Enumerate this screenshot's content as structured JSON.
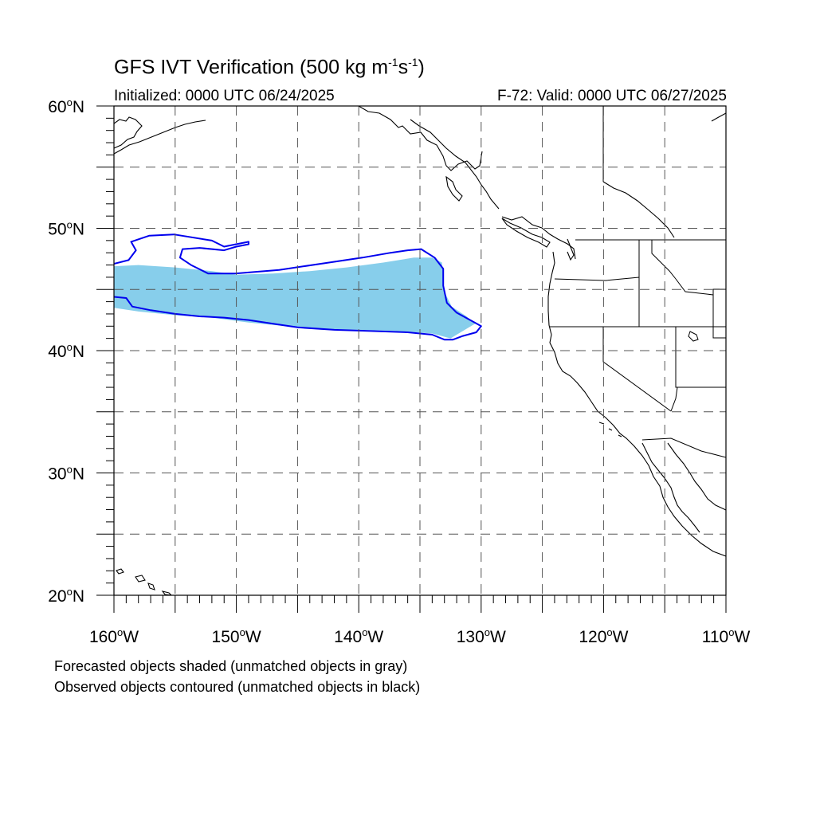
{
  "title": {
    "main": "GFS IVT Verification (500 kg m",
    "exp1": "-1",
    "mid": "s",
    "exp2": "-1",
    "end": ")"
  },
  "initialized": "Initialized: 0000 UTC 06/24/2025",
  "valid": "F-72: Valid: 0000 UTC 06/27/2025",
  "footnotes": [
    "Forecasted objects shaded (unmatched objects in gray)",
    "Observed objects contoured (unmatched objects in black)"
  ],
  "map": {
    "lat_range": [
      20,
      60
    ],
    "lon_range": [
      -160,
      -110
    ],
    "grid": "dashed every 5 degrees",
    "lat_labels": [
      {
        "lat": 60,
        "deg": "60",
        "hem": "N"
      },
      {
        "lat": 50,
        "deg": "50",
        "hem": "N"
      },
      {
        "lat": 40,
        "deg": "40",
        "hem": "N"
      },
      {
        "lat": 30,
        "deg": "30",
        "hem": "N"
      },
      {
        "lat": 20,
        "deg": "20",
        "hem": "N"
      }
    ],
    "lon_labels": [
      {
        "lon": -160,
        "deg": "160",
        "hem": "W"
      },
      {
        "lon": -150,
        "deg": "150",
        "hem": "W"
      },
      {
        "lon": -140,
        "deg": "140",
        "hem": "W"
      },
      {
        "lon": -130,
        "deg": "130",
        "hem": "W"
      },
      {
        "lon": -120,
        "deg": "120",
        "hem": "W"
      },
      {
        "lon": -110,
        "deg": "110",
        "hem": "W"
      }
    ],
    "colors": {
      "forecast_fill": "#87ceeb",
      "observed_contour": "#0000ee",
      "coastline": "#000000",
      "grid": "#555555"
    },
    "forecast_object": {
      "upper_edge": [
        [
          -160,
          46.9
        ],
        [
          -158,
          47.0
        ],
        [
          -155,
          46.8
        ],
        [
          -152,
          46.5
        ],
        [
          -150,
          46.2
        ],
        [
          -147,
          46.3
        ],
        [
          -144,
          46.5
        ],
        [
          -141,
          46.8
        ],
        [
          -138,
          47.2
        ],
        [
          -135.5,
          47.6
        ],
        [
          -134,
          47.6
        ],
        [
          -133.2,
          47.2
        ],
        [
          -133.1,
          46.0
        ],
        [
          -133.0,
          44.8
        ],
        [
          -132.4,
          43.6
        ],
        [
          -131.2,
          42.8
        ],
        [
          -130.5,
          42.2
        ]
      ],
      "lower_edge": [
        [
          -130.5,
          42.2
        ],
        [
          -131.5,
          41.6
        ],
        [
          -132.5,
          41.0
        ],
        [
          -134,
          41.4
        ],
        [
          -137,
          41.6
        ],
        [
          -140,
          41.7
        ],
        [
          -143,
          41.7
        ],
        [
          -146,
          42.0
        ],
        [
          -149,
          42.3
        ],
        [
          -152,
          42.7
        ],
        [
          -155,
          42.9
        ],
        [
          -158,
          43.2
        ],
        [
          -160,
          43.5
        ]
      ]
    },
    "observed_object": [
      [
        -160,
        47.1
      ],
      [
        -158.8,
        47.4
      ],
      [
        -158.2,
        48.2
      ],
      [
        -158.6,
        48.9
      ],
      [
        -157.1,
        49.4
      ],
      [
        -155.1,
        49.5
      ],
      [
        -152.0,
        49.0
      ],
      [
        -151.0,
        48.5
      ],
      [
        -149.0,
        48.9
      ],
      [
        -149.0,
        48.7
      ],
      [
        -150.0,
        48.5
      ],
      [
        -151.0,
        48.2
      ],
      [
        -153.0,
        48.4
      ],
      [
        -154.4,
        48.3
      ],
      [
        -154.6,
        47.6
      ],
      [
        -153.7,
        47.0
      ],
      [
        -152.3,
        46.3
      ],
      [
        -150.1,
        46.3
      ],
      [
        -146.5,
        46.6
      ],
      [
        -143.1,
        47.1
      ],
      [
        -139.7,
        47.6
      ],
      [
        -137.4,
        48.0
      ],
      [
        -136.0,
        48.2
      ],
      [
        -134.9,
        48.3
      ],
      [
        -133.8,
        47.6
      ],
      [
        -133.1,
        46.7
      ],
      [
        -133.1,
        45.3
      ],
      [
        -132.8,
        43.9
      ],
      [
        -132.0,
        43.1
      ],
      [
        -130.9,
        42.5
      ],
      [
        -130.0,
        42.0
      ],
      [
        -130.4,
        41.5
      ],
      [
        -131.5,
        41.2
      ],
      [
        -132.3,
        40.9
      ],
      [
        -133.0,
        40.9
      ],
      [
        -134.0,
        41.3
      ],
      [
        -136.0,
        41.5
      ],
      [
        -139.0,
        41.6
      ],
      [
        -142.0,
        41.7
      ],
      [
        -145.0,
        41.9
      ],
      [
        -147.0,
        42.2
      ],
      [
        -149.0,
        42.5
      ],
      [
        -151.0,
        42.7
      ],
      [
        -153.0,
        42.8
      ],
      [
        -155.0,
        43.0
      ],
      [
        -157.0,
        43.3
      ],
      [
        -158.5,
        43.6
      ],
      [
        -159.0,
        44.3
      ],
      [
        -160,
        44.4
      ]
    ]
  }
}
